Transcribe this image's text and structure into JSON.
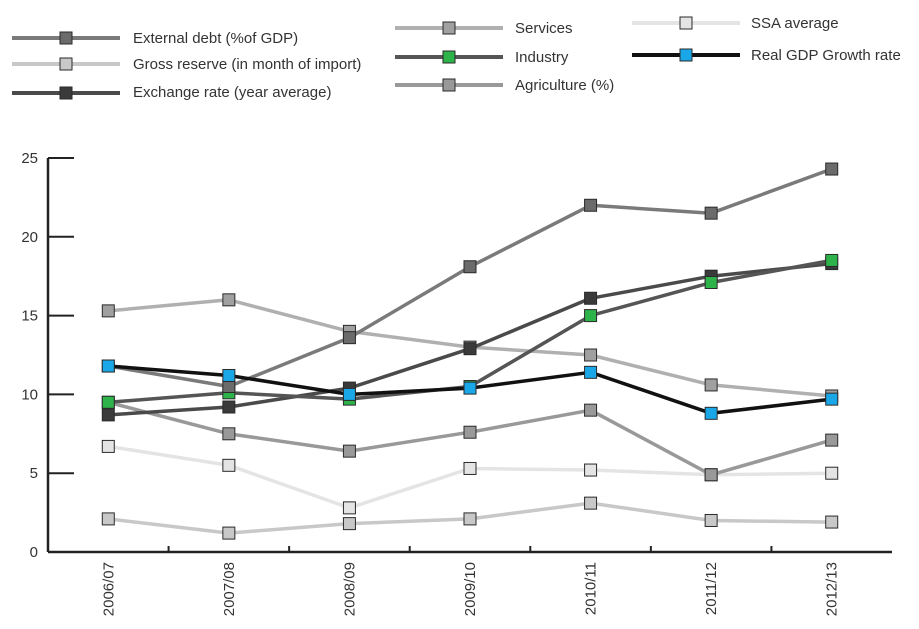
{
  "chart_data": {
    "type": "line",
    "title": "",
    "xlabel": "",
    "ylabel": "",
    "ylim": [
      0,
      25
    ],
    "yticks": [
      "0",
      "5",
      "10",
      "15",
      "20",
      "25"
    ],
    "categories": [
      "2006/07",
      "2007/08",
      "2008/09",
      "2009/10",
      "2010/11",
      "2011/12",
      "2012/13"
    ],
    "grid": false,
    "legend_position": "top",
    "series": [
      {
        "name": "External debt (%of GDP)",
        "color": "#7a7a7a",
        "marker": "#6b6b6b",
        "values": [
          11.8,
          10.5,
          13.6,
          18.1,
          22.0,
          21.5,
          24.3
        ]
      },
      {
        "name": "Gross reserve (in month of import)",
        "color": "#c8c8c8",
        "marker": "#c8c8c8",
        "values": [
          2.1,
          1.2,
          1.8,
          2.1,
          3.1,
          2.0,
          1.9
        ]
      },
      {
        "name": "Exchange rate (year average)",
        "color": "#4a4a4a",
        "marker": "#3a3a3a",
        "values": [
          8.7,
          9.2,
          10.4,
          12.9,
          16.1,
          17.5,
          18.3
        ]
      },
      {
        "name": "Services",
        "color": "#b0b0b0",
        "marker": "#a0a0a0",
        "values": [
          15.3,
          16.0,
          14.0,
          13.0,
          12.5,
          10.6,
          9.9
        ]
      },
      {
        "name": "Industry",
        "color": "#555555",
        "marker": "#2db34a",
        "values": [
          9.5,
          10.1,
          9.7,
          10.5,
          15.0,
          17.1,
          18.5
        ]
      },
      {
        "name": "Agriculture (%)",
        "color": "#999999",
        "marker": "#999999",
        "values": [
          9.5,
          7.5,
          6.4,
          7.6,
          9.0,
          4.9,
          7.1
        ]
      },
      {
        "name": "SSA average",
        "color": "#e4e4e4",
        "marker": "#e4e4e4",
        "values": [
          6.7,
          5.5,
          2.8,
          5.3,
          5.2,
          4.9,
          5.0
        ]
      },
      {
        "name": "Real GDP Growth rate",
        "color": "#111111",
        "marker": "#1aa7e8",
        "values": [
          11.8,
          11.2,
          10.0,
          10.4,
          11.4,
          8.8,
          9.7
        ]
      }
    ]
  }
}
